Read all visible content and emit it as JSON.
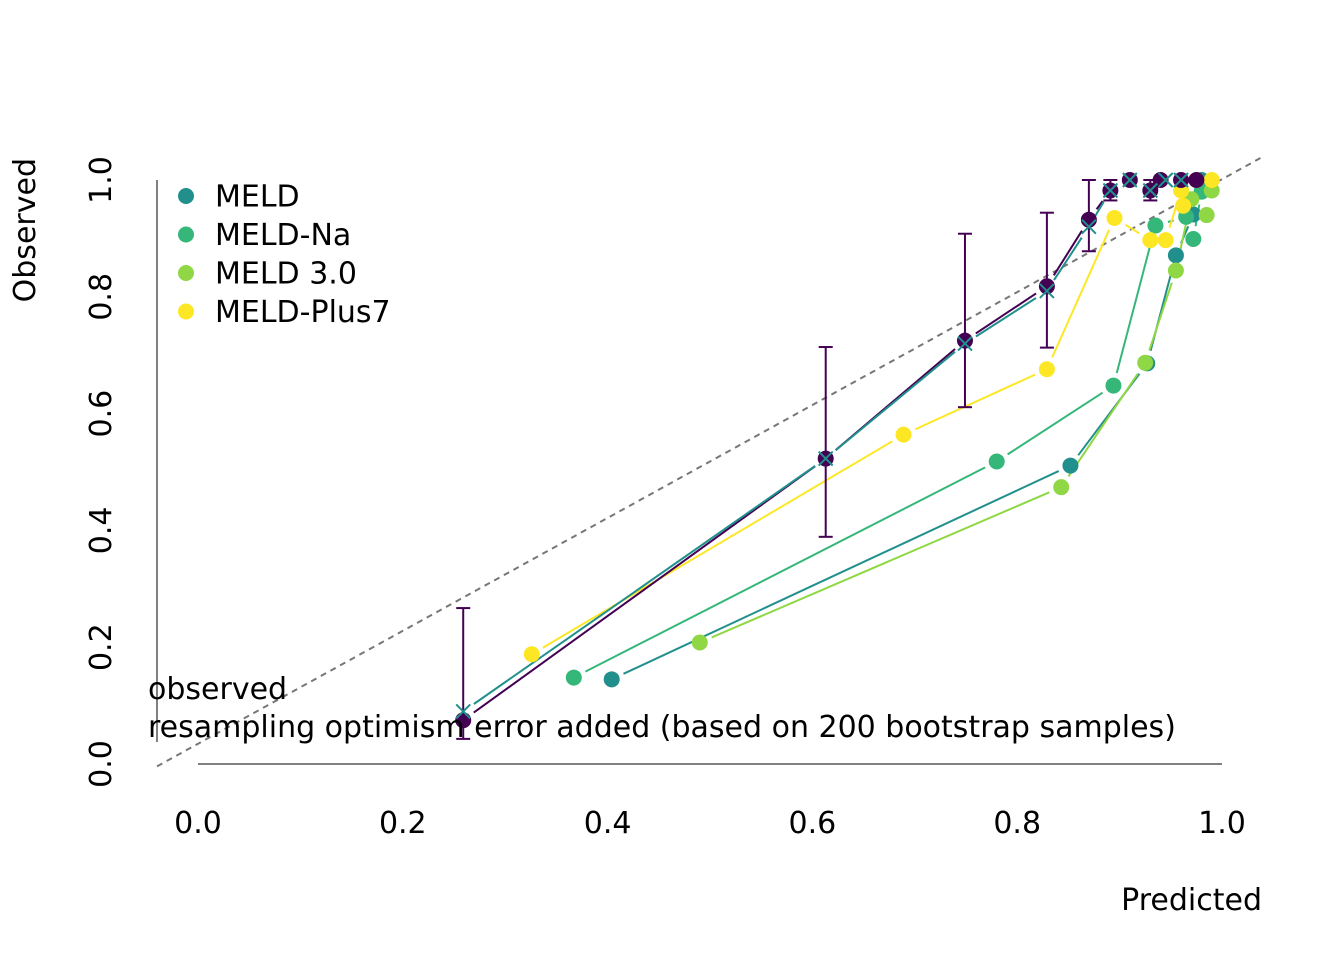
{
  "chart_data": {
    "type": "scatter",
    "title": "",
    "xlabel": "Predicted",
    "ylabel": "Observed",
    "xlim": [
      0,
      1
    ],
    "ylim": [
      0,
      1
    ],
    "x_ticks": [
      "0.0",
      "0.2",
      "0.4",
      "0.6",
      "0.8",
      "1.0"
    ],
    "y_ticks": [
      "0.0",
      "0.2",
      "0.4",
      "0.6",
      "0.8",
      "1.0"
    ],
    "x_tick_values": [
      0,
      0.2,
      0.4,
      0.6,
      0.8,
      1.0
    ],
    "y_tick_values": [
      0,
      0.2,
      0.4,
      0.6,
      0.8,
      1.0
    ],
    "grid": false,
    "reference_line": {
      "style": "dashed",
      "color": "#777777"
    },
    "legend": {
      "placement": "top-left",
      "entries": [
        {
          "label": "MELD",
          "color": "#21908C"
        },
        {
          "label": "MELD-Na",
          "color": "#35B779"
        },
        {
          "label": "MELD 3.0",
          "color": "#8FD744"
        },
        {
          "label": "MELD-Plus7",
          "color": "#FDE725"
        }
      ]
    },
    "notes": [
      "observed",
      "resampling optimism error added (based on 200 bootstrap samples)"
    ],
    "series": [
      {
        "color": "#21908C",
        "marker": "circle",
        "points": [
          [
            0.404,
            0.145
          ],
          [
            0.852,
            0.511
          ],
          [
            0.927,
            0.686
          ],
          [
            0.955,
            0.871
          ],
          [
            0.972,
            0.941
          ],
          [
            0.98,
            1.0
          ]
        ]
      },
      {
        "color": "#35B779",
        "marker": "circle",
        "points": [
          [
            0.367,
            0.148
          ],
          [
            0.78,
            0.518
          ],
          [
            0.894,
            0.648
          ],
          [
            0.935,
            0.922
          ],
          [
            0.965,
            0.937
          ],
          [
            0.972,
            0.899
          ],
          [
            0.98,
            0.98
          ]
        ]
      },
      {
        "color": "#8FD744",
        "marker": "circle",
        "points": [
          [
            0.49,
            0.208
          ],
          [
            0.843,
            0.474
          ],
          [
            0.925,
            0.687
          ],
          [
            0.955,
            0.845
          ],
          [
            0.97,
            0.967
          ],
          [
            0.985,
            0.94
          ],
          [
            0.99,
            0.982
          ]
        ]
      },
      {
        "color": "#FDE725",
        "marker": "circle",
        "points": [
          [
            0.326,
            0.188
          ],
          [
            0.689,
            0.564
          ],
          [
            0.829,
            0.676
          ],
          [
            0.895,
            0.935
          ],
          [
            0.93,
            0.897
          ],
          [
            0.945,
            0.897
          ],
          [
            0.962,
            0.956
          ],
          [
            0.96,
            0.982
          ],
          [
            0.975,
            1.0
          ],
          [
            0.99,
            1.0
          ]
        ]
      },
      {
        "color": "#440154",
        "marker": "circle",
        "points": [
          [
            0.259,
            0.075
          ],
          [
            0.613,
            0.523
          ],
          [
            0.749,
            0.725
          ],
          [
            0.829,
            0.818
          ],
          [
            0.87,
            0.932
          ],
          [
            0.891,
            0.982
          ],
          [
            0.91,
            1.0
          ],
          [
            0.93,
            0.982
          ],
          [
            0.94,
            1.0
          ],
          [
            0.96,
            1.0
          ],
          [
            0.975,
            1.0
          ]
        ]
      },
      {
        "color": "#21908C",
        "marker": "x",
        "points": [
          [
            0.259,
            0.09
          ],
          [
            0.613,
            0.523
          ],
          [
            0.749,
            0.72
          ],
          [
            0.829,
            0.81
          ],
          [
            0.87,
            0.92
          ],
          [
            0.891,
            0.982
          ],
          [
            0.91,
            1.0
          ],
          [
            0.93,
            0.982
          ],
          [
            0.945,
            1.0
          ],
          [
            0.96,
            1.0
          ]
        ]
      }
    ],
    "error_bars": {
      "color": "#440154",
      "items": [
        {
          "x": 0.259,
          "low": 0.043,
          "high": 0.267
        },
        {
          "x": 0.613,
          "low": 0.389,
          "high": 0.714
        },
        {
          "x": 0.749,
          "low": 0.611,
          "high": 0.908
        },
        {
          "x": 0.829,
          "low": 0.713,
          "high": 0.944
        },
        {
          "x": 0.87,
          "low": 0.878,
          "high": 1.0
        },
        {
          "x": 0.891,
          "low": 0.965,
          "high": 1.0
        },
        {
          "x": 0.93,
          "low": 0.965,
          "high": 1.0
        }
      ]
    }
  }
}
